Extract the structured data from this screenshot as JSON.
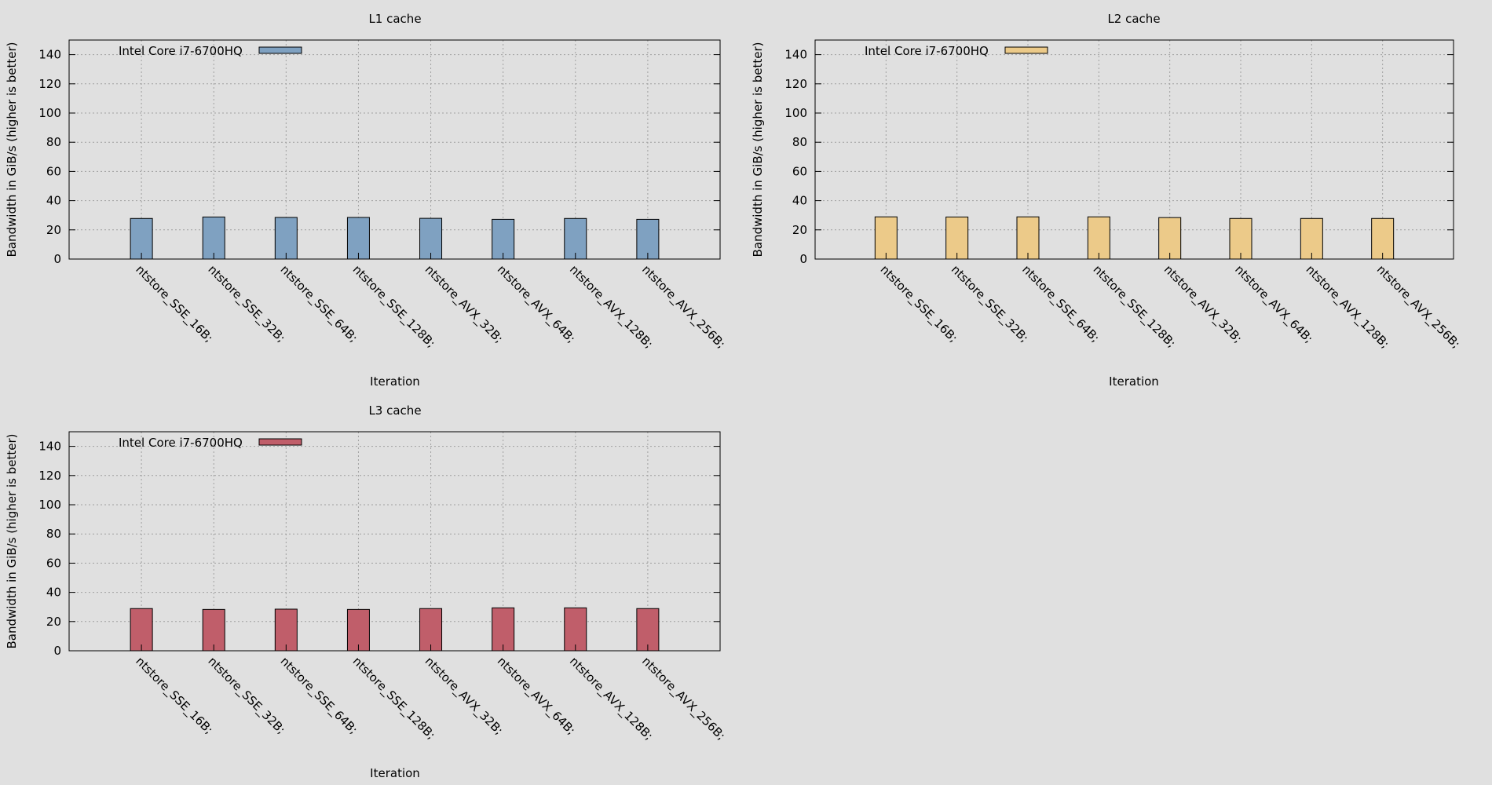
{
  "chart_data": [
    {
      "type": "bar",
      "title": "L1 cache",
      "xlabel": "Iteration",
      "ylabel": "Bandwidth in GiB/s (higher is better)",
      "ylim": [
        0,
        150
      ],
      "yticks": [
        0,
        20,
        40,
        60,
        80,
        100,
        120,
        140
      ],
      "grid": true,
      "legend_position": "top-left",
      "categories": [
        "ntstore_SSE_16B;",
        "ntstore_SSE_32B;",
        "ntstore_SSE_64B;",
        "ntstore_SSE_128B;",
        "ntstore_AVX_32B;",
        "ntstore_AVX_64B;",
        "ntstore_AVX_128B;",
        "ntstore_AVX_256B;"
      ],
      "series": [
        {
          "name": "Intel Core i7-6700HQ",
          "color": "#7fa1c1",
          "values": [
            27.8,
            28.8,
            28.5,
            28.5,
            27.9,
            27.2,
            27.8,
            27.2
          ]
        }
      ]
    },
    {
      "type": "bar",
      "title": "L2 cache",
      "xlabel": "Iteration",
      "ylabel": "Bandwidth in GiB/s (higher is better)",
      "ylim": [
        0,
        150
      ],
      "yticks": [
        0,
        20,
        40,
        60,
        80,
        100,
        120,
        140
      ],
      "grid": true,
      "legend_position": "top-left",
      "categories": [
        "ntstore_SSE_16B;",
        "ntstore_SSE_32B;",
        "ntstore_SSE_64B;",
        "ntstore_SSE_128B;",
        "ntstore_AVX_32B;",
        "ntstore_AVX_64B;",
        "ntstore_AVX_128B;",
        "ntstore_AVX_256B;"
      ],
      "series": [
        {
          "name": "Intel Core i7-6700HQ",
          "color": "#ecca89",
          "values": [
            28.9,
            28.8,
            28.9,
            28.9,
            28.4,
            27.8,
            27.8,
            27.8
          ]
        }
      ]
    },
    {
      "type": "bar",
      "title": "L3 cache",
      "xlabel": "Iteration",
      "ylabel": "Bandwidth in GiB/s (higher is better)",
      "ylim": [
        0,
        150
      ],
      "yticks": [
        0,
        20,
        40,
        60,
        80,
        100,
        120,
        140
      ],
      "grid": true,
      "legend_position": "top-left",
      "categories": [
        "ntstore_SSE_16B;",
        "ntstore_SSE_32B;",
        "ntstore_SSE_64B;",
        "ntstore_SSE_128B;",
        "ntstore_AVX_32B;",
        "ntstore_AVX_64B;",
        "ntstore_AVX_128B;",
        "ntstore_AVX_256B;"
      ],
      "series": [
        {
          "name": "Intel Core i7-6700HQ",
          "color": "#c05e6a",
          "values": [
            28.9,
            28.3,
            28.5,
            28.3,
            28.9,
            29.4,
            29.4,
            28.9
          ]
        }
      ]
    }
  ]
}
